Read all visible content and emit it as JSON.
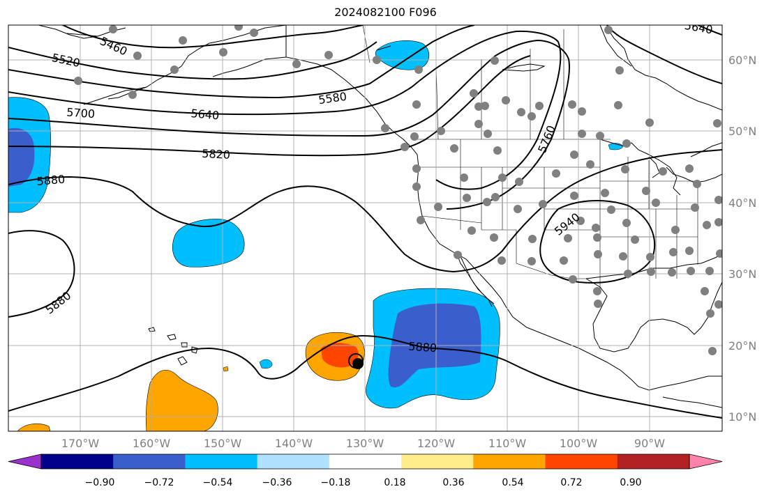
{
  "title": "2024082100 F096",
  "lon_ticks": [
    "170°W",
    "160°W",
    "150°W",
    "140°W",
    "130°W",
    "120°W",
    "110°W",
    "100°W",
    "90°W"
  ],
  "lat_ticks": [
    "60°N",
    "50°N",
    "40°N",
    "30°N",
    "20°N",
    "10°N"
  ],
  "contour_labels": [
    "5460",
    "5520",
    "5580",
    "5640",
    "5700",
    "5760",
    "5820",
    "5880",
    "5880",
    "5880",
    "5940",
    "5640"
  ],
  "colorbar": {
    "ticks": [
      "−0.90",
      "−0.72",
      "−0.54",
      "−0.36",
      "−0.18",
      "0.18",
      "0.36",
      "0.54",
      "0.72",
      "0.90"
    ],
    "colors": [
      "#9932cc",
      "#00008b",
      "#3a5fcd",
      "#00bfff",
      "#b0e2ff",
      "#ffffff",
      "#ffec8b",
      "#ffa500",
      "#ff4500",
      "#b22222",
      "#ff82ab"
    ]
  },
  "colors": {
    "grid": "#b0b0b0",
    "station": "#808080",
    "contour": "#000000"
  }
}
